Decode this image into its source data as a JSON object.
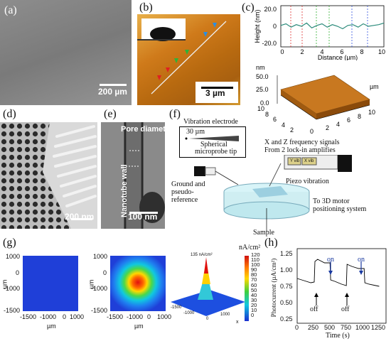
{
  "panels": {
    "a": {
      "label": "(a)",
      "scale": "200 µm"
    },
    "b": {
      "label": "(b)",
      "scale": "3 µm"
    },
    "c": {
      "label": "(c)",
      "ylabel": "Height (nm)",
      "xlabel": "Distance (µm)",
      "yticks": [
        "20.0",
        "0",
        "-20.0"
      ],
      "xticks": [
        "0",
        "2",
        "4",
        "6",
        "8",
        "10"
      ],
      "surf_unit": "nm",
      "surf_unit2": "µm",
      "surf_z": [
        "50.0",
        "25.0",
        "0.0"
      ],
      "surf_x": [
        "10",
        "8",
        "6",
        "4",
        "2",
        "0"
      ],
      "surf_y": [
        "0",
        "2",
        "4",
        "6",
        "8",
        "10"
      ]
    },
    "d": {
      "label": "(d)",
      "scale": "200 nm"
    },
    "e": {
      "label": "(e)",
      "scale": "100 nm",
      "pore": "Pore diameter",
      "wall": "Nanotube wall"
    },
    "f": {
      "label": "(f)",
      "vib": "Vibration electrode",
      "tip_size": "30 µm",
      "tip": "Spherical",
      "tip2": "microprobe tip",
      "freq1": "X and Z frequency signals",
      "freq2": "From 2 lock-in amplifies",
      "ground1": "Ground and",
      "ground2": "pseudo-",
      "ground3": "reference",
      "piezo": "Piezo vibration",
      "motor1": "To 3D motor",
      "motor2": "positioning system",
      "sample": "Sample",
      "ybox": "Y vib",
      "xbox": "X vib"
    },
    "g": {
      "label": "(g)",
      "unit": "nA/cm²",
      "ylabel": "µm",
      "xlabel": "µm",
      "yticks": [
        "1000",
        "0",
        "-1000",
        "-1500"
      ],
      "xticks": [
        "-1500",
        "-1000",
        "0",
        "1000"
      ],
      "xticks2": [
        "-1000",
        "0"
      ],
      "colorbar": [
        "120",
        "110",
        "100",
        "90",
        "80",
        "70",
        "60",
        "50",
        "40",
        "30",
        "20",
        "10",
        "0"
      ],
      "peak": "135 nA/cm²",
      "x3": "x",
      "x3t": [
        "-1500",
        "-1000",
        "0",
        "1000"
      ]
    },
    "h": {
      "label": "(h)",
      "ylabel": "Photocurrent (µA/cm²)",
      "xlabel": "Time (s)",
      "yticks": [
        "1.25",
        "1.00",
        "0.75",
        "0.50",
        "0.25"
      ],
      "xticks": [
        "0",
        "250",
        "500",
        "750",
        "1000",
        "1250"
      ],
      "on1": "on",
      "on2": "on",
      "off1": "off",
      "off2": "off"
    }
  },
  "chart_data": [
    {
      "type": "line",
      "title": "",
      "xlabel": "Distance (µm)",
      "ylabel": "Height (nm)",
      "xlim": [
        0,
        10
      ],
      "ylim": [
        -25,
        25
      ],
      "series": [
        {
          "x": [
            0,
            0.5,
            1,
            1.5,
            2,
            2.5,
            3,
            3.5,
            4,
            4.5,
            5,
            5.5,
            6,
            6.5,
            7,
            7.5,
            8,
            8.5,
            9,
            9.5,
            10
          ],
          "y": [
            1,
            3,
            -1,
            2,
            0,
            4,
            -2,
            1,
            3,
            -1,
            2,
            0,
            -3,
            1,
            2,
            -1,
            3,
            0,
            1,
            2,
            4
          ]
        }
      ]
    },
    {
      "type": "line",
      "title": "",
      "xlabel": "Time (s)",
      "ylabel": "Photocurrent (µA/cm²)",
      "xlim": [
        0,
        1300
      ],
      "ylim": [
        0.25,
        1.3
      ],
      "series": [
        {
          "x": [
            0,
            100,
            200,
            250,
            260,
            300,
            400,
            480,
            490,
            550,
            650,
            720,
            730,
            800,
            900,
            980,
            990,
            1050,
            1150,
            1200
          ],
          "y": [
            0.88,
            0.85,
            0.82,
            0.83,
            1.12,
            1.15,
            1.1,
            1.1,
            0.86,
            0.84,
            0.8,
            0.78,
            1.08,
            1.05,
            1.02,
            1.02,
            0.82,
            0.8,
            0.78,
            0.77
          ]
        }
      ]
    }
  ]
}
